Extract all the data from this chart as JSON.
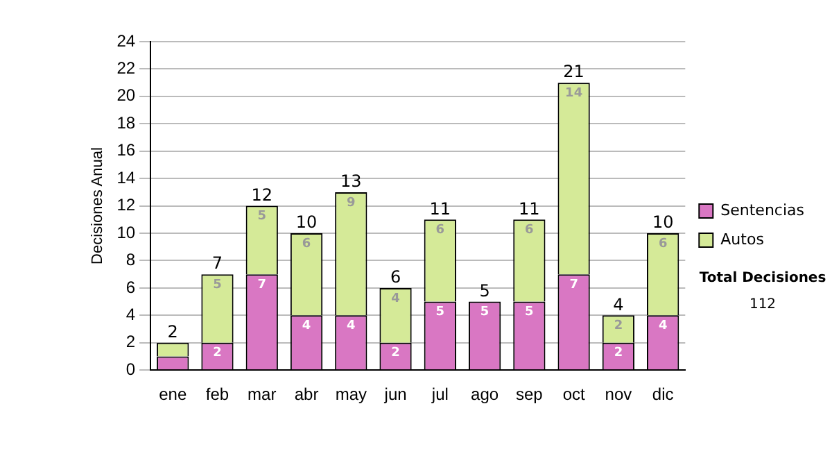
{
  "chart_data": {
    "type": "bar",
    "stacked": true,
    "ylabel": "Decisiones Anual",
    "categories": [
      "ene",
      "feb",
      "mar",
      "abr",
      "may",
      "jun",
      "jul",
      "ago",
      "sep",
      "oct",
      "nov",
      "dic"
    ],
    "series": [
      {
        "name": "Sentencias",
        "color": "#d977c3",
        "values": [
          1,
          2,
          7,
          4,
          4,
          2,
          5,
          5,
          5,
          7,
          2,
          4
        ],
        "value_labels": [
          null,
          "2",
          "7",
          "4",
          "4",
          "2",
          "5",
          "5",
          "5",
          "7",
          "2",
          "4"
        ]
      },
      {
        "name": "Autos",
        "color": "#d5ea98",
        "values": [
          1,
          5,
          5,
          6,
          9,
          4,
          6,
          0,
          6,
          14,
          2,
          6
        ],
        "value_labels": [
          null,
          "5",
          "5",
          "6",
          "9",
          "4",
          "6",
          null,
          "6",
          "14",
          "2",
          "6"
        ]
      }
    ],
    "totals": [
      "2",
      "7",
      "12",
      "10",
      "13",
      "6",
      "11",
      "5",
      "11",
      "21",
      "4",
      "10"
    ],
    "ylim": [
      0,
      24
    ],
    "yticks": [
      0,
      2,
      4,
      6,
      8,
      10,
      12,
      14,
      16,
      18,
      20,
      22,
      24
    ],
    "grid": "y",
    "legend": "right",
    "annotations": [
      "Total Decisiones",
      "112"
    ]
  }
}
